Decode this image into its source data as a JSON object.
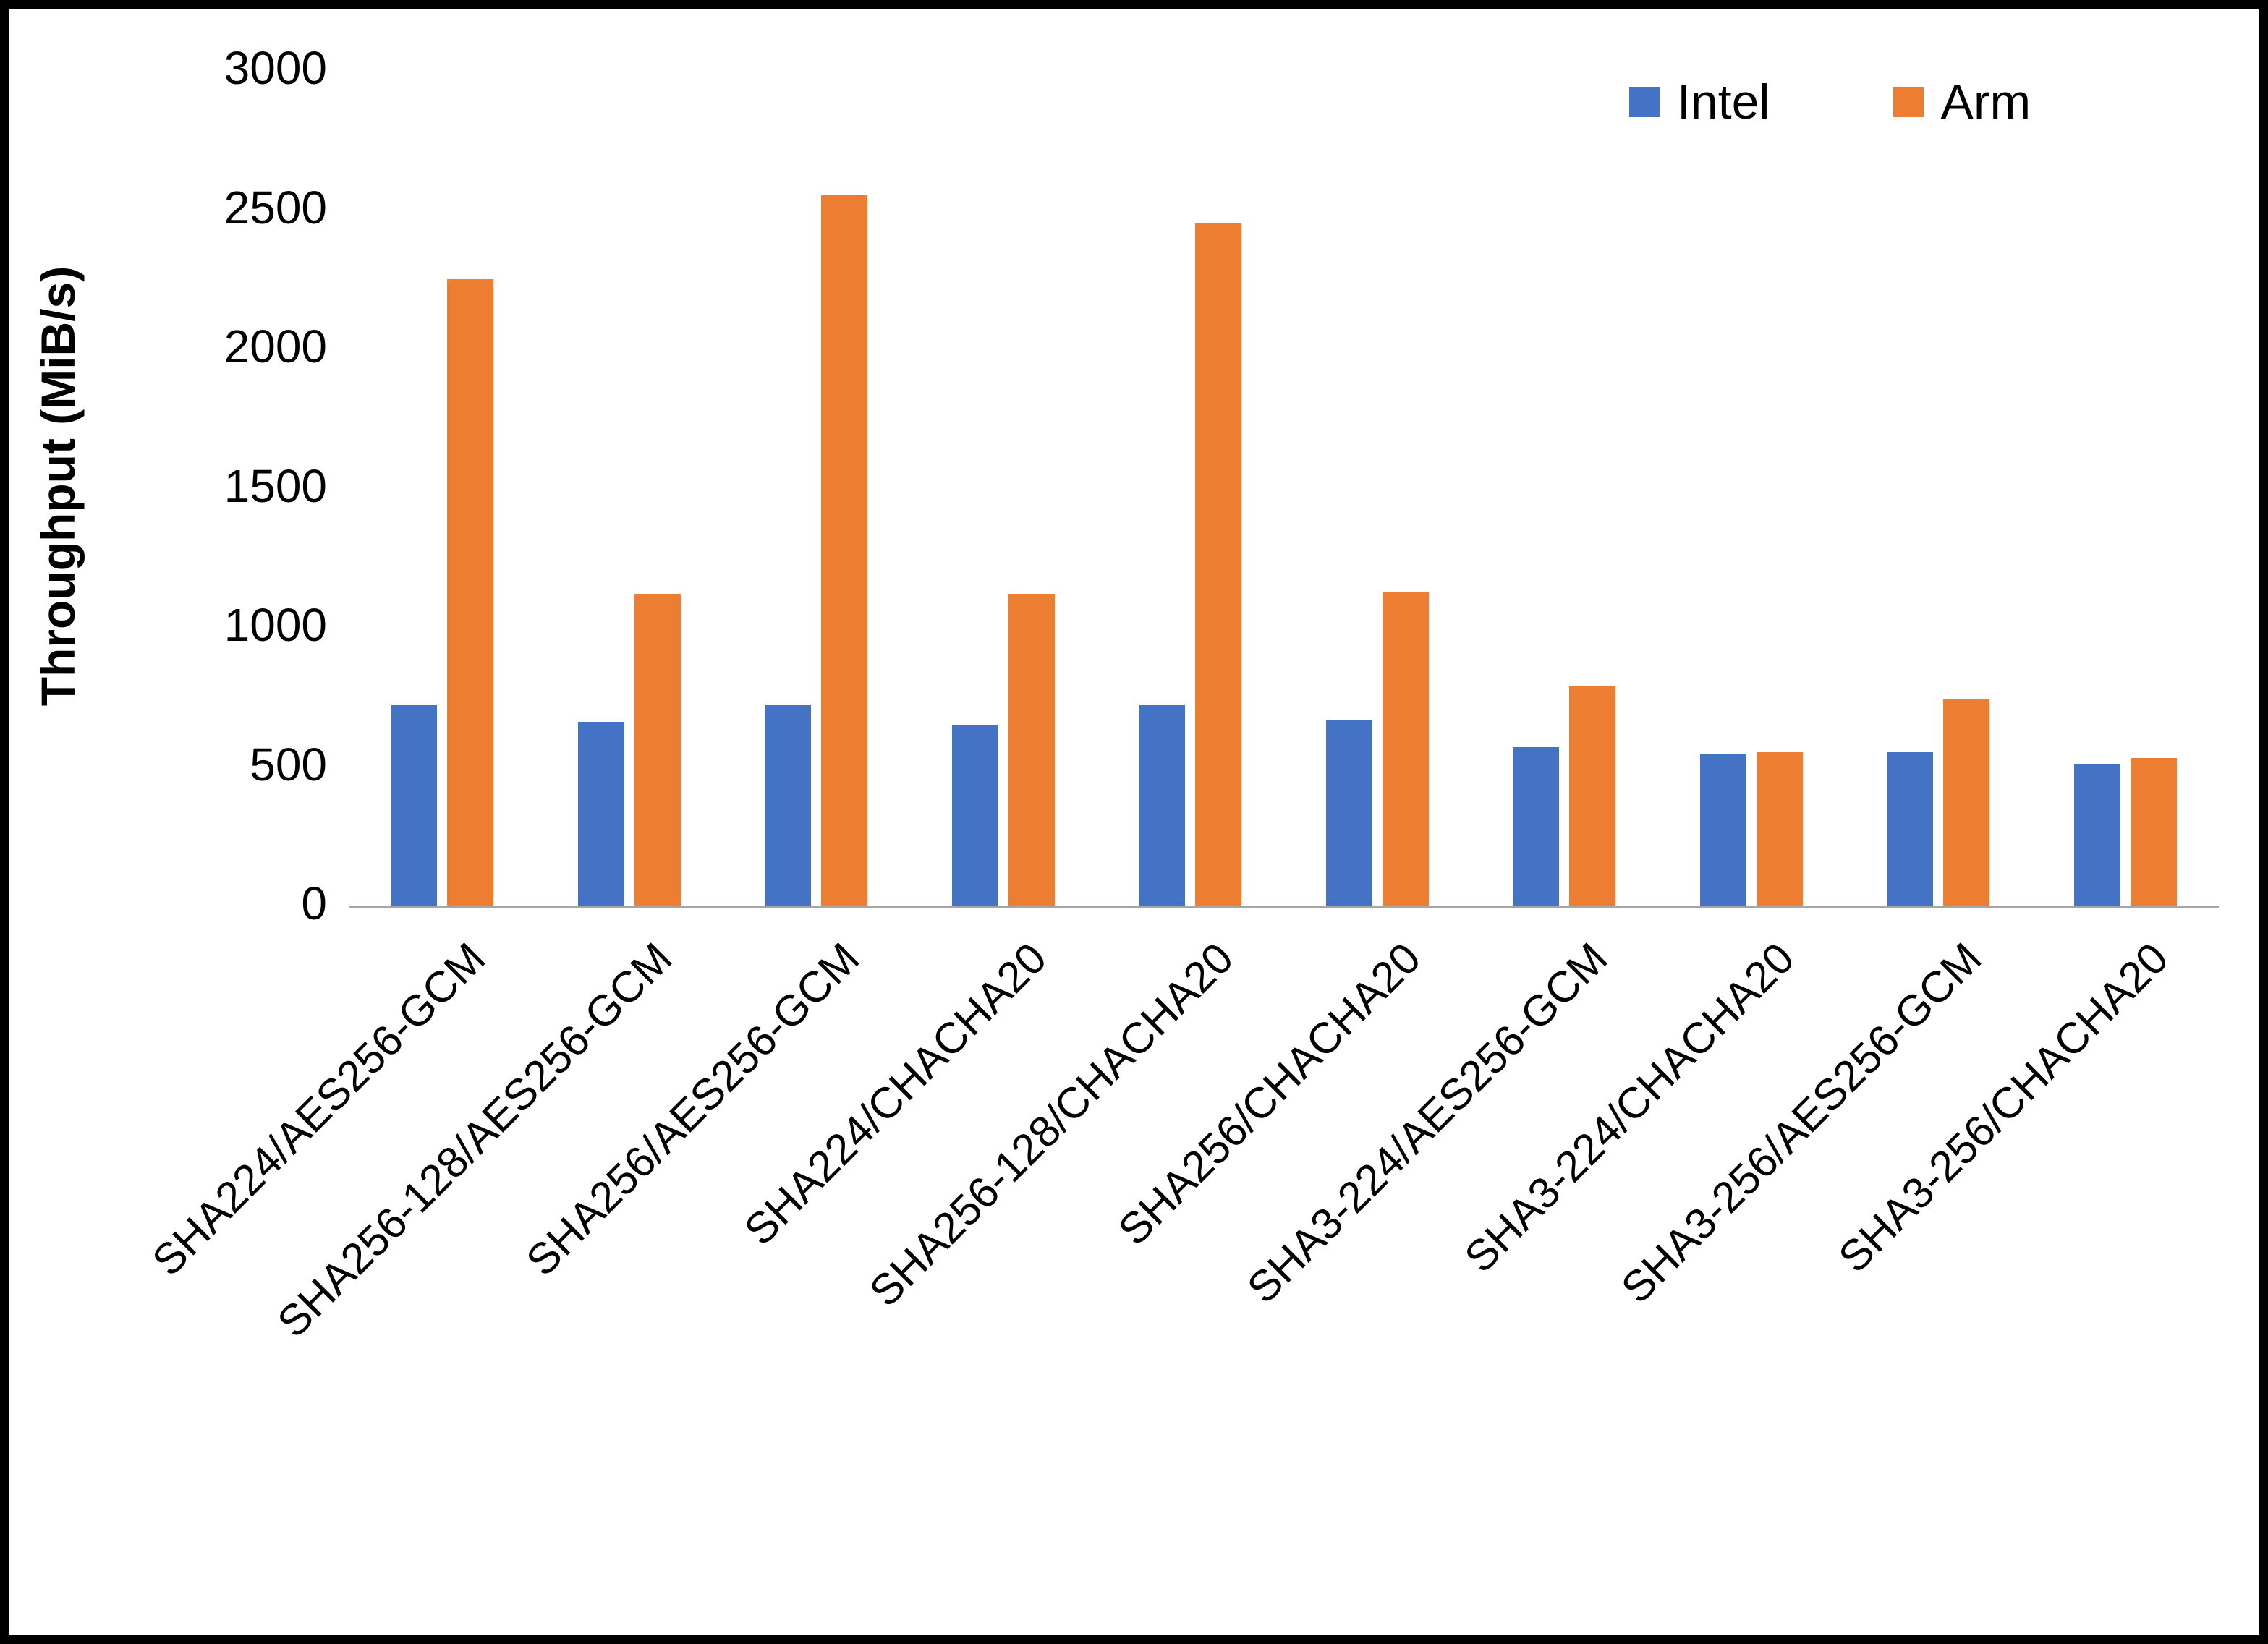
{
  "figure": {
    "background": "#FFFFFF",
    "border_color": "#000000"
  },
  "chart_data": {
    "type": "bar",
    "title": "",
    "xlabel": "",
    "ylabel": "Throughput (MiB/s)",
    "ylim": [
      0,
      3000
    ],
    "ytick_interval": 500,
    "yticks": [
      "0",
      "500",
      "1000",
      "1500",
      "2000",
      "2500",
      "3000"
    ],
    "grid": false,
    "legend_position": "top-right",
    "categories": [
      "SHA224/AES256-GCM",
      "SHA256-128/AES256-GCM",
      "SHA256/AES256-GCM",
      "SHA224/CHACHA20",
      "SHA256-128/CHACHA20",
      "SHA256/CHACHA20",
      "SHA3-224/AES256-GCM",
      "SHA3-224/CHACHA20",
      "SHA3-256/AES256-GCM",
      "SHA3-256/CHACHA20"
    ],
    "series": [
      {
        "name": "Intel",
        "color": "#4472C4",
        "values": [
          720,
          660,
          720,
          650,
          720,
          665,
          570,
          545,
          550,
          510
        ]
      },
      {
        "name": "Arm",
        "color": "#ED7D31",
        "values": [
          2250,
          1120,
          2550,
          1120,
          2450,
          1125,
          790,
          550,
          740,
          530
        ]
      }
    ]
  }
}
